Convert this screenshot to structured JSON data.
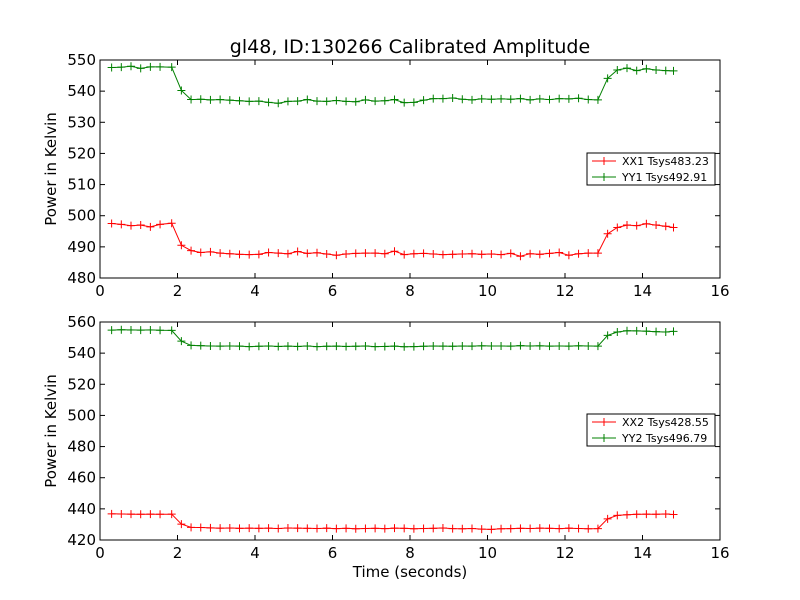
{
  "title": "gl48, ID:130266 Calibrated Amplitude",
  "colors": {
    "red_series": "#ff0000",
    "green_series": "#008000",
    "axes": "#000000",
    "background": "#ffffff"
  },
  "chart_data": [
    {
      "type": "line",
      "ylabel": "Power in Kelvin",
      "xlabel": "",
      "xlim": [
        0,
        16
      ],
      "ylim": [
        480,
        550
      ],
      "xticks": [
        0,
        2,
        4,
        6,
        8,
        10,
        12,
        14,
        16
      ],
      "yticks": [
        480,
        490,
        500,
        510,
        520,
        530,
        540,
        550
      ],
      "grid": false,
      "legend_position": "right",
      "x": [
        0.3,
        0.55,
        0.8,
        1.05,
        1.3,
        1.55,
        1.85,
        2.1,
        2.35,
        2.6,
        2.85,
        3.1,
        3.35,
        3.6,
        3.85,
        4.1,
        4.35,
        4.6,
        4.85,
        5.1,
        5.35,
        5.6,
        5.85,
        6.1,
        6.35,
        6.6,
        6.85,
        7.1,
        7.35,
        7.6,
        7.85,
        8.1,
        8.35,
        8.6,
        8.85,
        9.1,
        9.35,
        9.6,
        9.85,
        10.1,
        10.35,
        10.6,
        10.85,
        11.1,
        11.35,
        11.6,
        11.85,
        12.1,
        12.35,
        12.6,
        12.85,
        13.1,
        13.35,
        13.6,
        13.85,
        14.1,
        14.35,
        14.6,
        14.8
      ],
      "series": [
        {
          "name": "XX1 Tsys483.23",
          "color": "#ff0000",
          "values": [
            497.5,
            497.2,
            496.8,
            497.0,
            496.4,
            497.2,
            497.6,
            490.5,
            488.8,
            488.2,
            488.4,
            488.0,
            487.8,
            487.6,
            487.5,
            487.6,
            488.2,
            488.0,
            487.8,
            488.5,
            487.9,
            488.1,
            487.7,
            487.3,
            487.7,
            487.9,
            488.0,
            488.0,
            487.8,
            488.6,
            487.5,
            487.8,
            487.9,
            487.7,
            487.5,
            487.6,
            487.7,
            487.8,
            487.6,
            487.7,
            487.5,
            487.9,
            487.0,
            487.8,
            487.6,
            487.9,
            488.2,
            487.3,
            487.8,
            488.0,
            488.0,
            494.2,
            496.2,
            497.0,
            496.8,
            497.4,
            497.0,
            496.6,
            496.2
          ]
        },
        {
          "name": "YY1 Tsys492.91",
          "color": "#008000",
          "values": [
            547.6,
            547.7,
            548.0,
            547.3,
            547.8,
            547.8,
            547.7,
            540.2,
            537.3,
            537.4,
            537.2,
            537.3,
            537.1,
            536.9,
            536.7,
            536.8,
            536.4,
            536.1,
            536.7,
            536.8,
            537.3,
            536.8,
            536.7,
            537.0,
            536.7,
            536.6,
            537.2,
            536.8,
            536.9,
            537.3,
            536.3,
            536.4,
            537.1,
            537.6,
            537.6,
            537.8,
            537.4,
            537.2,
            537.5,
            537.4,
            537.5,
            537.4,
            537.6,
            537.2,
            537.5,
            537.3,
            537.6,
            537.5,
            537.7,
            537.3,
            537.2,
            544.1,
            546.8,
            547.4,
            546.6,
            547.2,
            546.8,
            546.6,
            546.5
          ]
        }
      ]
    },
    {
      "type": "line",
      "ylabel": "Power in Kelvin",
      "xlabel": "Time (seconds)",
      "xlim": [
        0,
        16
      ],
      "ylim": [
        420,
        560
      ],
      "xticks": [
        0,
        2,
        4,
        6,
        8,
        10,
        12,
        14,
        16
      ],
      "yticks": [
        420,
        440,
        460,
        480,
        500,
        520,
        540,
        560
      ],
      "grid": false,
      "legend_position": "right",
      "x": [
        0.3,
        0.55,
        0.8,
        1.05,
        1.3,
        1.55,
        1.85,
        2.1,
        2.35,
        2.6,
        2.85,
        3.1,
        3.35,
        3.6,
        3.85,
        4.1,
        4.35,
        4.6,
        4.85,
        5.1,
        5.35,
        5.6,
        5.85,
        6.1,
        6.35,
        6.6,
        6.85,
        7.1,
        7.35,
        7.6,
        7.85,
        8.1,
        8.35,
        8.6,
        8.85,
        9.1,
        9.35,
        9.6,
        9.85,
        10.1,
        10.35,
        10.6,
        10.85,
        11.1,
        11.35,
        11.6,
        11.85,
        12.1,
        12.35,
        12.6,
        12.85,
        13.1,
        13.35,
        13.6,
        13.85,
        14.1,
        14.35,
        14.6,
        14.8
      ],
      "series": [
        {
          "name": "XX2 Tsys428.55",
          "color": "#ff0000",
          "values": [
            436.8,
            436.7,
            436.6,
            436.5,
            436.6,
            436.5,
            436.6,
            430.2,
            428.1,
            428.0,
            427.8,
            427.6,
            427.7,
            427.5,
            427.6,
            427.5,
            427.6,
            427.4,
            427.7,
            427.6,
            427.5,
            427.4,
            427.6,
            427.3,
            427.5,
            427.2,
            427.4,
            427.5,
            427.3,
            427.6,
            427.5,
            427.2,
            427.4,
            427.5,
            427.7,
            427.3,
            427.2,
            427.4,
            427.0,
            426.8,
            427.2,
            427.3,
            427.5,
            427.4,
            427.6,
            427.5,
            427.3,
            427.6,
            427.4,
            427.2,
            427.3,
            433.6,
            435.8,
            436.2,
            436.5,
            436.6,
            436.5,
            436.7,
            436.4
          ]
        },
        {
          "name": "YY2 Tsys496.79",
          "color": "#008000",
          "values": [
            554.8,
            555.0,
            554.9,
            554.8,
            554.9,
            554.7,
            554.6,
            547.7,
            545.0,
            544.8,
            544.6,
            544.5,
            544.6,
            544.5,
            544.2,
            544.4,
            544.6,
            544.3,
            544.5,
            544.3,
            544.6,
            544.2,
            544.4,
            544.5,
            544.3,
            544.4,
            544.6,
            544.2,
            544.3,
            544.5,
            544.1,
            544.2,
            544.4,
            544.6,
            544.5,
            544.4,
            544.6,
            544.5,
            544.7,
            544.6,
            544.6,
            544.5,
            544.8,
            544.6,
            544.7,
            544.5,
            544.6,
            544.5,
            544.7,
            544.6,
            544.5,
            551.4,
            553.6,
            554.4,
            554.3,
            554.1,
            553.8,
            553.6,
            554.0
          ]
        }
      ]
    }
  ]
}
